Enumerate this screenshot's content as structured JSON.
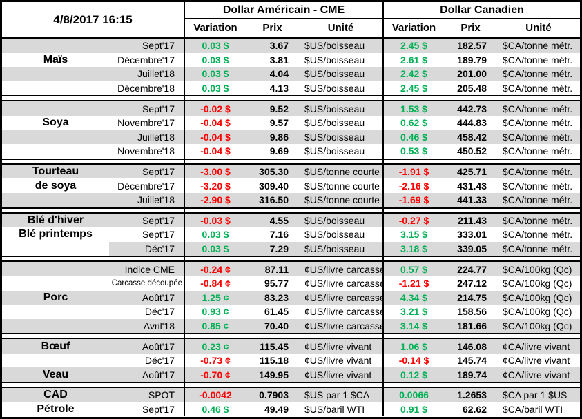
{
  "meta": {
    "timestamp": "4/8/2017 16:15"
  },
  "header": {
    "usd_group": "Dollar Américain - CME",
    "cad_group": "Dollar Canadien",
    "columns": [
      "Variation",
      "Prix",
      "Unité"
    ]
  },
  "colors": {
    "positive": "#00b155",
    "negative": "#ff0000",
    "row_shade": "#d9d9d9"
  },
  "sections": [
    {
      "labels": [
        {
          "text": "Maïs",
          "row": 1
        }
      ],
      "rows": [
        {
          "month": "Sept'17",
          "us_var": "0.03 $",
          "us_price": "3.67",
          "us_unit": "$US/boisseau",
          "ca_var": "2.45 $",
          "ca_price": "182.57",
          "ca_unit": "$CA/tonne métr."
        },
        {
          "month": "Décembre'17",
          "us_var": "0.03 $",
          "us_price": "3.81",
          "us_unit": "$US/boisseau",
          "ca_var": "2.61 $",
          "ca_price": "189.79",
          "ca_unit": "$CA/tonne métr."
        },
        {
          "month": "Juillet'18",
          "us_var": "0.03 $",
          "us_price": "4.04",
          "us_unit": "$US/boisseau",
          "ca_var": "2.42 $",
          "ca_price": "201.00",
          "ca_unit": "$CA/tonne métr."
        },
        {
          "month": "Décembre'18",
          "us_var": "0.03 $",
          "us_price": "4.13",
          "us_unit": "$US/boisseau",
          "ca_var": "2.45 $",
          "ca_price": "205.48",
          "ca_unit": "$CA/tonne métr."
        }
      ]
    },
    {
      "labels": [
        {
          "text": "Soya",
          "row": 1
        }
      ],
      "rows": [
        {
          "month": "Sept'17",
          "us_var": "-0.02 $",
          "us_price": "9.52",
          "us_unit": "$US/boisseau",
          "ca_var": "1.53 $",
          "ca_price": "442.73",
          "ca_unit": "$CA/tonne métr."
        },
        {
          "month": "Novembre'17",
          "us_var": "-0.04 $",
          "us_price": "9.57",
          "us_unit": "$US/boisseau",
          "ca_var": "0.62 $",
          "ca_price": "444.83",
          "ca_unit": "$CA/tonne métr."
        },
        {
          "month": "Juillet'18",
          "us_var": "-0.04 $",
          "us_price": "9.86",
          "us_unit": "$US/boisseau",
          "ca_var": "0.46 $",
          "ca_price": "458.42",
          "ca_unit": "$CA/tonne métr."
        },
        {
          "month": "Novembre'18",
          "us_var": "-0.04 $",
          "us_price": "9.69",
          "us_unit": "$US/boisseau",
          "ca_var": "0.53 $",
          "ca_price": "450.52",
          "ca_unit": "$CA/tonne métr."
        }
      ]
    },
    {
      "labels": [
        {
          "text": "Tourteau",
          "row": 0
        },
        {
          "text": "de soya",
          "row": 1
        }
      ],
      "rows": [
        {
          "month": "Sept'17",
          "us_var": "-3.00 $",
          "us_price": "305.30",
          "us_unit": "$US/tonne courte",
          "ca_var": "-1.91 $",
          "ca_price": "425.71",
          "ca_unit": "$CA/tonne métr."
        },
        {
          "month": "Décembre'17",
          "us_var": "-3.20 $",
          "us_price": "309.40",
          "us_unit": "$US/tonne courte",
          "ca_var": "-2.16 $",
          "ca_price": "431.43",
          "ca_unit": "$CA/tonne métr."
        },
        {
          "month": "Juillet'18",
          "us_var": "-2.90 $",
          "us_price": "316.50",
          "us_unit": "$US/tonne courte",
          "ca_var": "-1.69 $",
          "ca_price": "441.33",
          "ca_unit": "$CA/tonne métr."
        }
      ]
    },
    {
      "labels": [
        {
          "text": "Blé d'hiver",
          "row": 0
        },
        {
          "text": "Blé printemps",
          "row": 1
        }
      ],
      "rows": [
        {
          "month": "Sept'17",
          "us_var": "-0.03 $",
          "us_price": "4.55",
          "us_unit": "$US/boisseau",
          "ca_var": "-0.27 $",
          "ca_price": "211.43",
          "ca_unit": "$CA/tonne métr."
        },
        {
          "month": "Sept'17",
          "us_var": "0.03 $",
          "us_price": "7.16",
          "us_unit": "$US/boisseau",
          "ca_var": "3.15 $",
          "ca_price": "333.01",
          "ca_unit": "$CA/tonne métr."
        },
        {
          "month": "Déc'17",
          "us_var": "0.03 $",
          "us_price": "7.29",
          "us_unit": "$US/boisseau",
          "ca_var": "3.18 $",
          "ca_price": "339.05",
          "ca_unit": "$CA/tonne métr.",
          "name_unshaded": true
        }
      ]
    },
    {
      "labels": [
        {
          "text": "Porc",
          "row": 2
        }
      ],
      "rows": [
        {
          "month": "Indice CME",
          "us_var": "-0.24 ¢",
          "us_price": "87.11",
          "us_unit": "¢US/livre carcasse",
          "ca_var": "0.57 $",
          "ca_price": "224.77",
          "ca_unit": "$CA/100kg (Qc)"
        },
        {
          "month": "Carcasse découpée",
          "us_var": "-0.84 ¢",
          "us_price": "95.77",
          "us_unit": "¢US/livre carcasse",
          "ca_var": "-1.21 $",
          "ca_price": "247.12",
          "ca_unit": "$CA/100kg (Qc)",
          "month_small": true
        },
        {
          "month": "Août'17",
          "us_var": "1.25 ¢",
          "us_price": "83.23",
          "us_unit": "¢US/livre carcasse",
          "ca_var": "4.34 $",
          "ca_price": "214.75",
          "ca_unit": "$CA/100kg (Qc)"
        },
        {
          "month": "Déc'17",
          "us_var": "0.93 ¢",
          "us_price": "61.45",
          "us_unit": "¢US/livre carcasse",
          "ca_var": "3.21 $",
          "ca_price": "158.56",
          "ca_unit": "$CA/100kg (Qc)"
        },
        {
          "month": "Avril'18",
          "us_var": "0.85 ¢",
          "us_price": "70.40",
          "us_unit": "¢US/livre carcasse",
          "ca_var": "3.14 $",
          "ca_price": "181.66",
          "ca_unit": "$CA/100kg (Qc)"
        }
      ]
    },
    {
      "labels": [
        {
          "text": "Bœuf",
          "row": 0
        },
        {
          "text": "Veau",
          "row": 2
        }
      ],
      "rows": [
        {
          "month": "Août'17",
          "us_var": "0.23 ¢",
          "us_price": "115.45",
          "us_unit": "¢US/livre vivant",
          "ca_var": "1.06 $",
          "ca_price": "146.08",
          "ca_unit": "¢CA/livre vivant"
        },
        {
          "month": "Déc'17",
          "us_var": "-0.73 ¢",
          "us_price": "115.18",
          "us_unit": "¢US/livre vivant",
          "ca_var": "-0.14 $",
          "ca_price": "145.74",
          "ca_unit": "¢CA/livre vivant"
        },
        {
          "month": "Août'17",
          "us_var": "-0.70 ¢",
          "us_price": "149.95",
          "us_unit": "¢US/livre vivant",
          "ca_var": "0.12 $",
          "ca_price": "189.74",
          "ca_unit": "¢CA/livre vivant"
        }
      ]
    },
    {
      "labels": [
        {
          "text": "CAD",
          "row": 0
        },
        {
          "text": "Pétrole",
          "row": 1
        }
      ],
      "rows": [
        {
          "month": "SPOT",
          "us_var": "-0.0042",
          "us_price": "0.7903",
          "us_unit": "$US par 1 $CA",
          "ca_var": "0.0066",
          "ca_price": "1.2653",
          "ca_unit": "$CA par 1 $US"
        },
        {
          "month": "Sept'17",
          "us_var": "0.46 $",
          "us_price": "49.49",
          "us_unit": "$US/baril WTI",
          "ca_var": "0.91 $",
          "ca_price": "62.62",
          "ca_unit": "$CA/baril WTI"
        }
      ]
    }
  ]
}
